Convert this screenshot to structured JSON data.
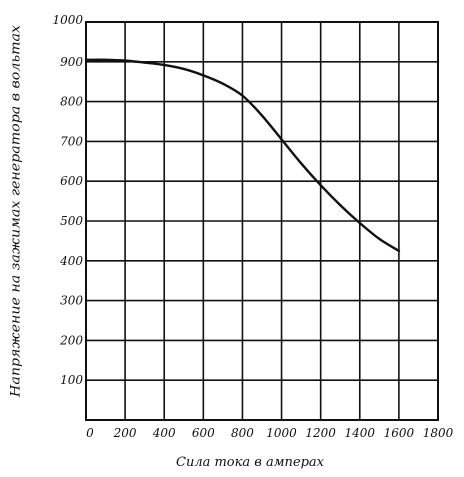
{
  "chart_data": {
    "type": "line",
    "xlabel": "Сила тока в амперах",
    "ylabel": "Напряжение на зажимах генератора в вольтах",
    "xlim": [
      0,
      1800
    ],
    "ylim": [
      0,
      1000
    ],
    "x_ticks": [
      "0",
      "200",
      "400",
      "600",
      "800",
      "1000",
      "1200",
      "1400",
      "1600",
      "1800"
    ],
    "y_ticks": [
      "100",
      "200",
      "300",
      "400",
      "500",
      "600",
      "700",
      "800",
      "900",
      "1000"
    ],
    "grid": true,
    "legend": "none",
    "series": [
      {
        "x": [
          0,
          100,
          200,
          300,
          400,
          500,
          600,
          700,
          800,
          900,
          1000,
          1100,
          1200,
          1300,
          1400,
          1500,
          1600
        ],
        "values": [
          905,
          905,
          903,
          898,
          892,
          882,
          866,
          845,
          815,
          765,
          705,
          645,
          590,
          540,
          495,
          455,
          425
        ],
        "color": "#111111"
      }
    ]
  }
}
